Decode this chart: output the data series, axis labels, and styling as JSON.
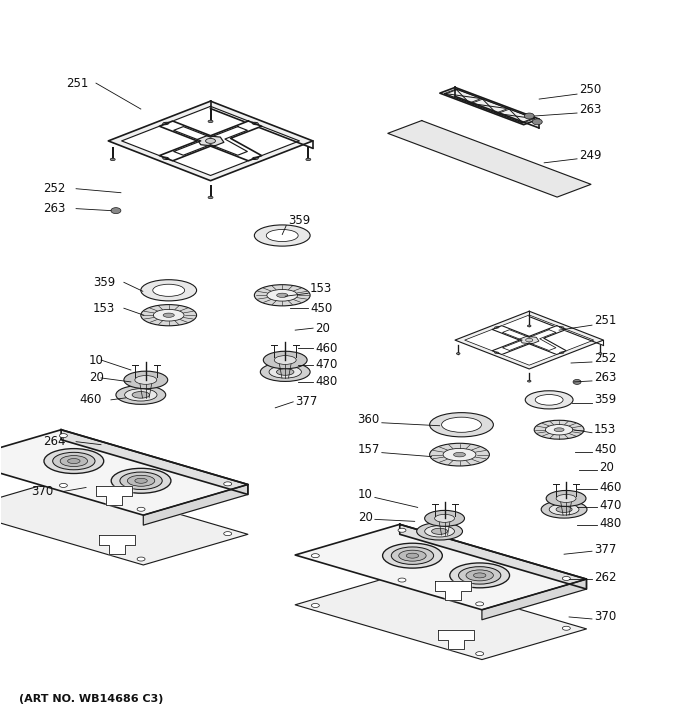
{
  "art_no": "(ART NO. WB14686 C3)",
  "bg_color": "#ffffff",
  "line_color": "#1a1a1a",
  "fig_width": 6.8,
  "fig_height": 7.25,
  "dpi": 100
}
